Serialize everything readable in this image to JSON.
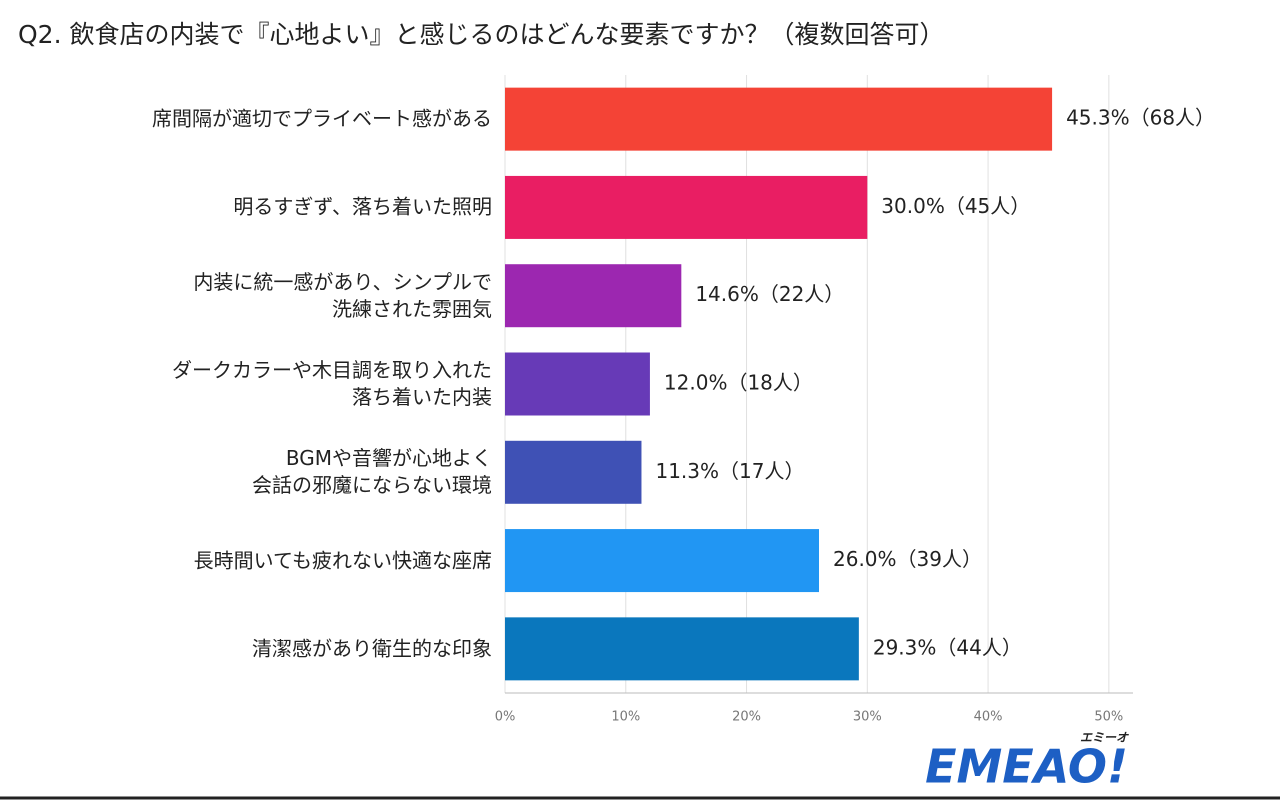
{
  "chart_data": {
    "type": "hbar",
    "title": "Q2. 飲食店の内装で『心地よい』と感じるのはどんな要素ですか？（複数回答可）",
    "categories": [
      "席間隔が適切でプライベート感がある",
      "明るすぎず、落ち着いた照明",
      "内装に統一感があり、シンプルで\n洗練された雰囲気",
      "ダークカラーや木目調を取り入れた\n落ち着いた内装",
      "BGMや音響が心地よく\n会話の邪魔にならない環境",
      "長時間いても疲れない快適な座席",
      "清潔感があり衛生的な印象"
    ],
    "values": [
      45.3,
      30.0,
      14.6,
      12.0,
      11.3,
      26.0,
      29.3
    ],
    "value_labels": [
      "45.3%（68人）",
      "30.0%（45人）",
      "14.6%（22人）",
      "12.0%（18人）",
      "11.3%（17人）",
      "26.0%（39人）",
      "29.3%（44人）"
    ],
    "colors": [
      "#f44336",
      "#e91e63",
      "#9c27b0",
      "#673ab7",
      "#3f51b5",
      "#2196f3",
      "#0a77bd"
    ],
    "xlim": [
      0,
      52
    ],
    "xticks": [
      {
        "value": 0,
        "label": "0%"
      },
      {
        "value": 10,
        "label": "10%"
      },
      {
        "value": 20,
        "label": "20%"
      },
      {
        "value": 30,
        "label": "30%"
      },
      {
        "value": 40,
        "label": "40%"
      },
      {
        "value": 50,
        "label": "50%"
      }
    ],
    "grid": true
  },
  "logo": {
    "text": "EMEAO!",
    "kana": "エミーオ"
  }
}
